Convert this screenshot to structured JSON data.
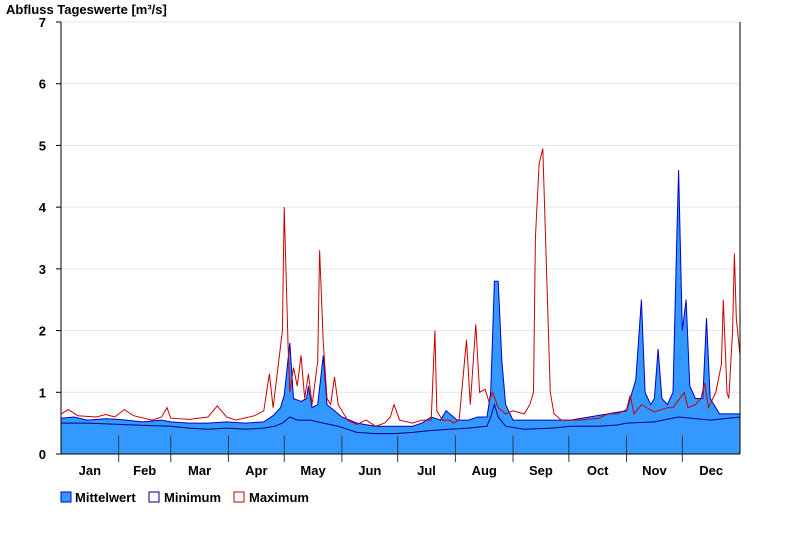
{
  "chart_data": {
    "type": "area",
    "title": "Abfluss Tageswerte [m³/s]",
    "xlabel": "",
    "ylabel": "",
    "ylim": [
      0,
      7
    ],
    "yticks": [
      0,
      1,
      2,
      3,
      4,
      5,
      6,
      7
    ],
    "xlim": [
      1,
      366
    ],
    "months": [
      "Jan",
      "Feb",
      "Mar",
      "Apr",
      "May",
      "Jun",
      "Jul",
      "Aug",
      "Sep",
      "Oct",
      "Nov",
      "Dec"
    ],
    "month_starts": [
      1,
      32,
      60,
      91,
      121,
      152,
      182,
      213,
      244,
      274,
      305,
      335
    ],
    "grid": true,
    "legend_position": "bottom-left",
    "series": [
      {
        "name": "Mittelwert",
        "color": "#3399ff",
        "edge": "#0000cc",
        "points": [
          [
            1,
            0.58
          ],
          [
            8,
            0.6
          ],
          [
            15,
            0.55
          ],
          [
            25,
            0.57
          ],
          [
            32,
            0.56
          ],
          [
            45,
            0.52
          ],
          [
            55,
            0.55
          ],
          [
            60,
            0.52
          ],
          [
            70,
            0.5
          ],
          [
            80,
            0.5
          ],
          [
            90,
            0.52
          ],
          [
            100,
            0.5
          ],
          [
            110,
            0.52
          ],
          [
            115,
            0.62
          ],
          [
            119,
            0.75
          ],
          [
            121,
            0.95
          ],
          [
            124,
            1.8
          ],
          [
            126,
            0.9
          ],
          [
            130,
            0.85
          ],
          [
            133,
            0.9
          ],
          [
            134,
            1.1
          ],
          [
            136,
            0.75
          ],
          [
            139,
            0.8
          ],
          [
            142,
            1.6
          ],
          [
            144,
            0.8
          ],
          [
            148,
            0.7
          ],
          [
            152,
            0.6
          ],
          [
            160,
            0.5
          ],
          [
            170,
            0.45
          ],
          [
            180,
            0.45
          ],
          [
            190,
            0.45
          ],
          [
            195,
            0.5
          ],
          [
            200,
            0.6
          ],
          [
            205,
            0.55
          ],
          [
            208,
            0.7
          ],
          [
            210,
            0.65
          ],
          [
            214,
            0.55
          ],
          [
            220,
            0.55
          ],
          [
            225,
            0.6
          ],
          [
            230,
            0.6
          ],
          [
            232,
            1.0
          ],
          [
            234,
            2.8
          ],
          [
            236,
            2.8
          ],
          [
            238,
            1.5
          ],
          [
            240,
            0.8
          ],
          [
            244,
            0.55
          ],
          [
            255,
            0.55
          ],
          [
            265,
            0.55
          ],
          [
            275,
            0.55
          ],
          [
            285,
            0.6
          ],
          [
            295,
            0.65
          ],
          [
            305,
            0.7
          ],
          [
            310,
            1.2
          ],
          [
            313,
            2.5
          ],
          [
            315,
            1.0
          ],
          [
            318,
            0.8
          ],
          [
            320,
            0.9
          ],
          [
            322,
            1.7
          ],
          [
            324,
            0.9
          ],
          [
            327,
            0.8
          ],
          [
            330,
            1.0
          ],
          [
            332,
            3.5
          ],
          [
            333,
            4.6
          ],
          [
            335,
            2.0
          ],
          [
            337,
            2.5
          ],
          [
            339,
            1.1
          ],
          [
            342,
            0.9
          ],
          [
            346,
            0.9
          ],
          [
            348,
            2.2
          ],
          [
            350,
            0.9
          ],
          [
            355,
            0.65
          ],
          [
            366,
            0.65
          ]
        ]
      },
      {
        "name": "Minimum",
        "color": "#000080",
        "points": [
          [
            1,
            0.5
          ],
          [
            15,
            0.5
          ],
          [
            32,
            0.48
          ],
          [
            50,
            0.46
          ],
          [
            60,
            0.45
          ],
          [
            70,
            0.42
          ],
          [
            80,
            0.4
          ],
          [
            90,
            0.42
          ],
          [
            100,
            0.4
          ],
          [
            110,
            0.42
          ],
          [
            116,
            0.45
          ],
          [
            120,
            0.5
          ],
          [
            124,
            0.6
          ],
          [
            128,
            0.55
          ],
          [
            135,
            0.55
          ],
          [
            142,
            0.5
          ],
          [
            150,
            0.45
          ],
          [
            160,
            0.35
          ],
          [
            170,
            0.33
          ],
          [
            180,
            0.33
          ],
          [
            190,
            0.35
          ],
          [
            200,
            0.38
          ],
          [
            210,
            0.4
          ],
          [
            220,
            0.42
          ],
          [
            230,
            0.45
          ],
          [
            232,
            0.6
          ],
          [
            234,
            0.8
          ],
          [
            236,
            0.6
          ],
          [
            240,
            0.45
          ],
          [
            250,
            0.4
          ],
          [
            265,
            0.42
          ],
          [
            275,
            0.45
          ],
          [
            290,
            0.45
          ],
          [
            300,
            0.47
          ],
          [
            305,
            0.5
          ],
          [
            320,
            0.52
          ],
          [
            333,
            0.6
          ],
          [
            340,
            0.58
          ],
          [
            350,
            0.55
          ],
          [
            366,
            0.6
          ]
        ]
      },
      {
        "name": "Maximum",
        "color": "#cc0000",
        "points": [
          [
            1,
            0.65
          ],
          [
            5,
            0.72
          ],
          [
            10,
            0.62
          ],
          [
            20,
            0.6
          ],
          [
            25,
            0.64
          ],
          [
            30,
            0.6
          ],
          [
            35,
            0.72
          ],
          [
            40,
            0.62
          ],
          [
            50,
            0.55
          ],
          [
            55,
            0.6
          ],
          [
            58,
            0.75
          ],
          [
            60,
            0.58
          ],
          [
            70,
            0.56
          ],
          [
            80,
            0.6
          ],
          [
            85,
            0.78
          ],
          [
            90,
            0.6
          ],
          [
            95,
            0.55
          ],
          [
            105,
            0.62
          ],
          [
            110,
            0.7
          ],
          [
            113,
            1.3
          ],
          [
            115,
            0.75
          ],
          [
            118,
            1.5
          ],
          [
            120,
            2.0
          ],
          [
            121,
            4.0
          ],
          [
            123,
            1.8
          ],
          [
            124,
            1.0
          ],
          [
            126,
            1.4
          ],
          [
            128,
            1.1
          ],
          [
            130,
            1.6
          ],
          [
            132,
            0.9
          ],
          [
            134,
            1.3
          ],
          [
            136,
            0.8
          ],
          [
            139,
            1.5
          ],
          [
            140,
            3.3
          ],
          [
            142,
            1.8
          ],
          [
            144,
            0.9
          ],
          [
            146,
            0.8
          ],
          [
            148,
            1.25
          ],
          [
            150,
            0.8
          ],
          [
            155,
            0.55
          ],
          [
            160,
            0.48
          ],
          [
            165,
            0.55
          ],
          [
            170,
            0.45
          ],
          [
            175,
            0.5
          ],
          [
            178,
            0.6
          ],
          [
            180,
            0.8
          ],
          [
            183,
            0.55
          ],
          [
            190,
            0.5
          ],
          [
            195,
            0.55
          ],
          [
            200,
            0.55
          ],
          [
            202,
            2.0
          ],
          [
            203,
            0.7
          ],
          [
            206,
            0.55
          ],
          [
            210,
            0.55
          ],
          [
            212,
            0.5
          ],
          [
            215,
            0.55
          ],
          [
            219,
            1.85
          ],
          [
            221,
            0.8
          ],
          [
            224,
            2.1
          ],
          [
            226,
            1.0
          ],
          [
            229,
            1.05
          ],
          [
            231,
            0.85
          ],
          [
            233,
            1.0
          ],
          [
            236,
            0.75
          ],
          [
            240,
            0.65
          ],
          [
            244,
            0.7
          ],
          [
            250,
            0.65
          ],
          [
            253,
            0.8
          ],
          [
            255,
            1.0
          ],
          [
            256,
            3.5
          ],
          [
            258,
            4.7
          ],
          [
            260,
            4.95
          ],
          [
            262,
            3.0
          ],
          [
            264,
            1.0
          ],
          [
            266,
            0.65
          ],
          [
            270,
            0.55
          ],
          [
            280,
            0.55
          ],
          [
            290,
            0.58
          ],
          [
            295,
            0.65
          ],
          [
            300,
            0.65
          ],
          [
            305,
            0.72
          ],
          [
            307,
            0.95
          ],
          [
            309,
            0.65
          ],
          [
            313,
            0.8
          ],
          [
            320,
            0.68
          ],
          [
            327,
            0.75
          ],
          [
            330,
            0.75
          ],
          [
            336,
            1.0
          ],
          [
            338,
            0.75
          ],
          [
            342,
            0.8
          ],
          [
            345,
            0.9
          ],
          [
            347,
            1.15
          ],
          [
            349,
            0.75
          ],
          [
            353,
            1.0
          ],
          [
            356,
            1.45
          ],
          [
            357,
            2.5
          ],
          [
            359,
            1.0
          ],
          [
            360,
            0.9
          ],
          [
            362,
            2.0
          ],
          [
            363,
            3.25
          ],
          [
            364,
            2.2
          ],
          [
            366,
            1.6
          ]
        ]
      }
    ]
  }
}
